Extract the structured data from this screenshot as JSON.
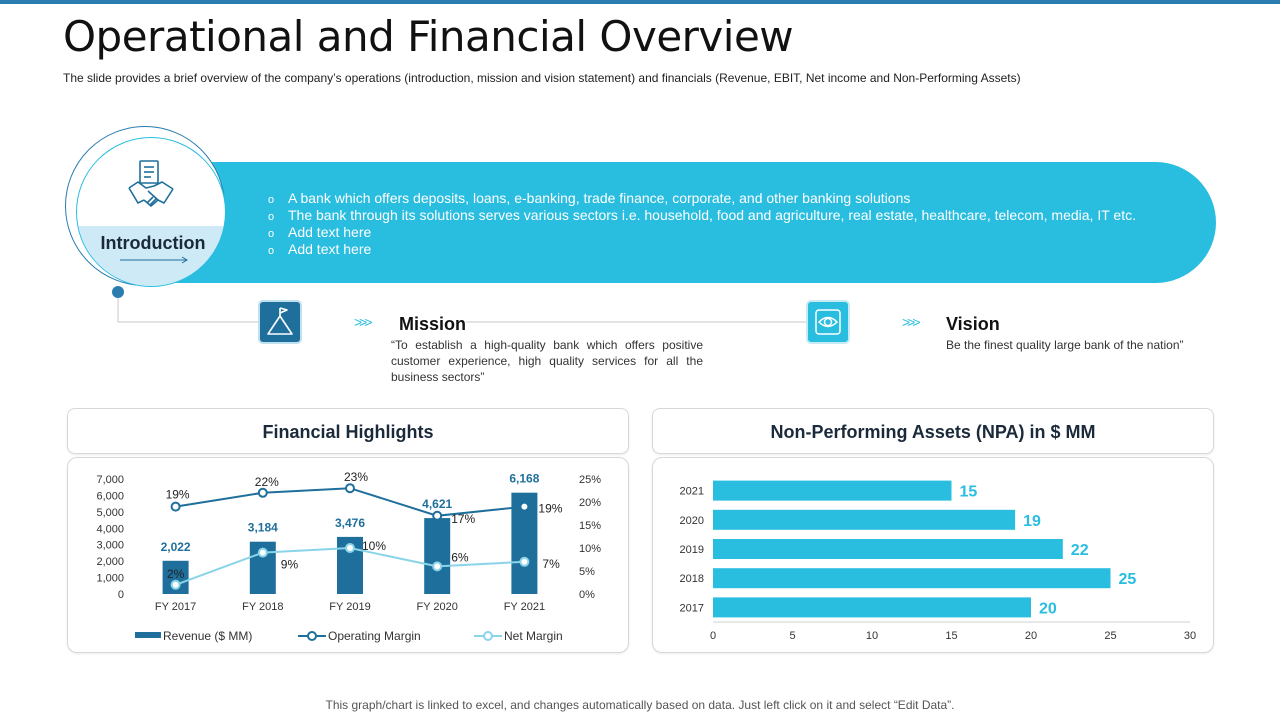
{
  "page": {
    "title": "Operational and Financial Overview",
    "subtitle": "The slide provides  a brief overview  of the company’s operations (introduction,  mission and vision  statement) and financials (Revenue,  EBIT, Net income and Non-Performing  Assets)",
    "footer": "This graph/chart is linked to excel, and changes automatically based on data. Just left click on it and select “Edit Data”."
  },
  "introduction": {
    "label": "Introduction",
    "icon": "handshake-document-icon",
    "bullet_glyph": "o",
    "bullets": [
      "A bank which offers deposits, loans, e-banking, trade finance, corporate, and other banking solutions",
      "The bank through its solutions serves various sectors i.e. household, food and agriculture, real estate, healthcare, telecom, media, IT etc.",
      "Add text here",
      "Add text here"
    ]
  },
  "mission": {
    "heading": "Mission",
    "icon": "flag-mountain-icon",
    "text": "“To establish a high-quality bank which offers positive customer experience, high quality services for all the business sectors”"
  },
  "vision": {
    "heading": "Vision",
    "icon": "eye-icon",
    "text": "Be the finest quality large bank of the nation”"
  },
  "colors": {
    "dark_blue": "#1f6f9c",
    "cyan": "#29bde0",
    "light_blue": "#8ad4ea"
  },
  "chart_data": [
    {
      "type": "bar",
      "title": "Financial Highlights",
      "categories": [
        "FY 2017",
        "FY 2018",
        "FY 2019",
        "FY 2020",
        "FY 2021"
      ],
      "ylim": [
        0,
        7000
      ],
      "y_ticks": [
        "0",
        "1,000",
        "2,000",
        "3,000",
        "4,000",
        "5,000",
        "6,000",
        "7,000"
      ],
      "y2lim": [
        0,
        25
      ],
      "y2_ticks": [
        "0%",
        "5%",
        "10%",
        "15%",
        "20%",
        "25%"
      ],
      "series": [
        {
          "name": "Revenue ($ MM)",
          "kind": "bar",
          "axis": "left",
          "values": [
            2022,
            3184,
            3476,
            4621,
            6168
          ],
          "labels": [
            "2,022",
            "3,184",
            "3,476",
            "4,621",
            "6,168"
          ]
        },
        {
          "name": "Operating Margin",
          "kind": "line",
          "axis": "right",
          "values": [
            19,
            22,
            23,
            17,
            19
          ],
          "labels": [
            "19%",
            "22%",
            "23%",
            "17%",
            "19%"
          ]
        },
        {
          "name": "Net Margin",
          "kind": "line",
          "axis": "right",
          "values": [
            2,
            9,
            10,
            6,
            7
          ],
          "labels": [
            "2%",
            "9%",
            "10%",
            "6%",
            "7%"
          ]
        }
      ],
      "legend": "bottom"
    },
    {
      "type": "bar",
      "orientation": "horizontal",
      "title": "Non-Performing Assets (NPA) in $ MM",
      "categories": [
        "2021",
        "2020",
        "2019",
        "2018",
        "2017"
      ],
      "values": [
        15,
        19,
        22,
        25,
        20
      ],
      "labels": [
        "15",
        "19",
        "22",
        "25",
        "20"
      ],
      "xlim": [
        0,
        30
      ],
      "x_ticks": [
        "0",
        "5",
        "10",
        "15",
        "20",
        "25",
        "30"
      ]
    }
  ]
}
